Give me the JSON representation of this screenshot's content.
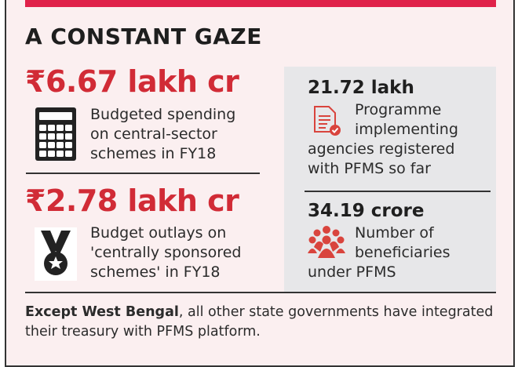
{
  "title": "A CONSTANT GAZE",
  "stats_left": [
    {
      "value": "₹6.67 lakh cr",
      "desc": [
        "Budgeted spending",
        "on central-sector",
        "schemes in FY18"
      ],
      "icon": "calculator-icon"
    },
    {
      "value": "₹2.78 lakh cr",
      "desc": [
        "Budget outlays on",
        "'centrally sponsored",
        "schemes' in FY18"
      ],
      "icon": "medal-icon"
    }
  ],
  "stats_right": [
    {
      "value": "21.72 lakh",
      "desc": [
        "Programme",
        "implementing",
        "agencies registered",
        "with PFMS so far"
      ],
      "icon": "document-check-icon"
    },
    {
      "value": "34.19 crore",
      "desc": [
        "Number of",
        "beneficiaries",
        "under PFMS"
      ],
      "icon": "people-group-icon"
    }
  ],
  "footer": {
    "bold": "Except West Bengal",
    "rest": ", all other state governments have integrated their treasury with PFMS platform."
  },
  "colors": {
    "accent": "#d12b36",
    "topbar": "#e0224a",
    "background": "#fbeff0",
    "panel": "#e7e7e9"
  }
}
